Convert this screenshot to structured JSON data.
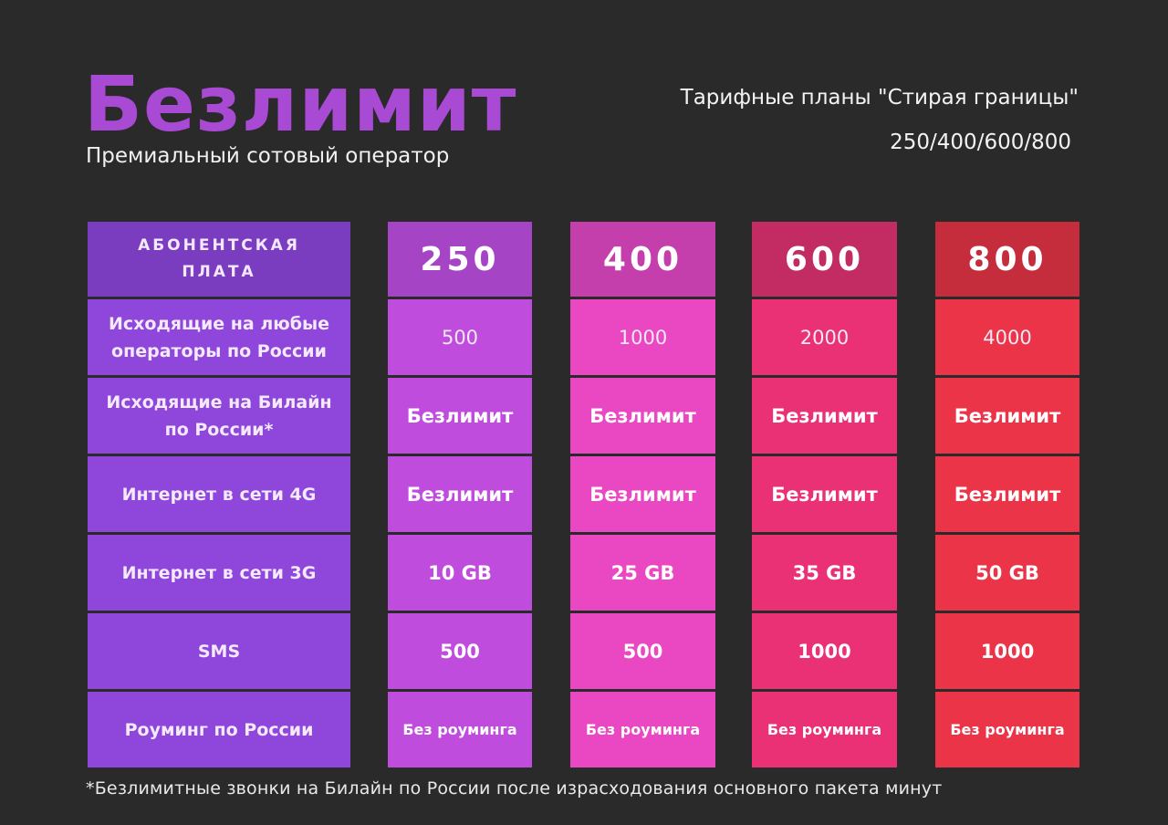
{
  "header": {
    "brand": "Безлимит",
    "subtitle": "Премиальный сотовый оператор",
    "plans_title": "Тарифные планы \"Стирая границы\"",
    "plans_numbers": "250/400/600/800"
  },
  "colors": {
    "background": "#2b2a2b",
    "brand": "#a84ad4",
    "labels_column": "#8e46db",
    "plan_250": "#c04cde",
    "plan_400": "#ea47c3",
    "plan_600": "#ea3176",
    "plan_800": "#ec3449"
  },
  "table": {
    "label_header": "АБОНЕНТСКАЯ ПЛАТА",
    "row_labels": [
      "Исходящие на любые операторы по России",
      "Исходящие на Билайн по России*",
      "Интернет в сети 4G",
      "Интернет в сети 3G",
      "SMS",
      "Роуминг по России"
    ],
    "plans": [
      {
        "name": "250",
        "values": [
          "500",
          "Безлимит",
          "Безлимит",
          "10 GB",
          "500",
          "Без роуминга"
        ]
      },
      {
        "name": "400",
        "values": [
          "1000",
          "Безлимит",
          "Безлимит",
          "25 GB",
          "500",
          "Без роуминга"
        ]
      },
      {
        "name": "600",
        "values": [
          "2000",
          "Безлимит",
          "Безлимит",
          "35 GB",
          "1000",
          "Без роуминга"
        ]
      },
      {
        "name": "800",
        "values": [
          "4000",
          "Безлимит",
          "Безлимит",
          "50 GB",
          "1000",
          "Без роуминга"
        ]
      }
    ]
  },
  "footnote": "*Безлимитные звонки на Билайн по России после израсходования основного пакета минут"
}
